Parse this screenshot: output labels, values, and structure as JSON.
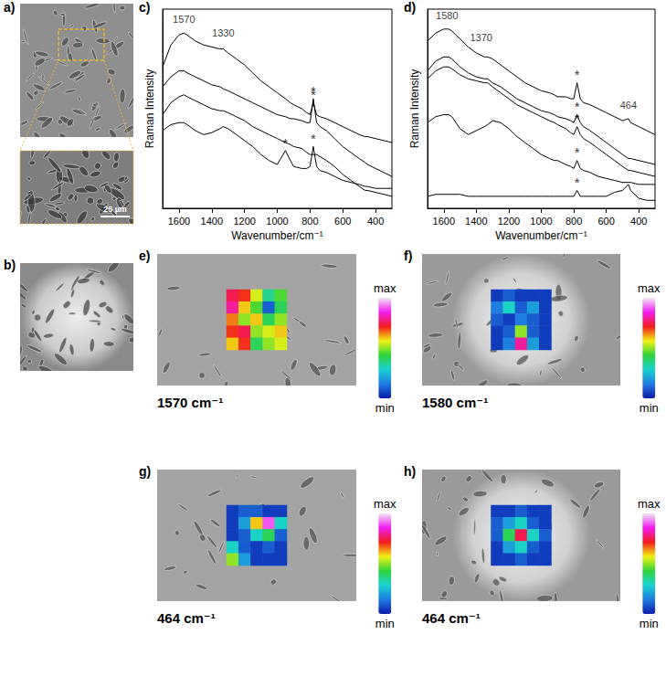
{
  "chart_data": [
    {
      "type": "image",
      "panel": "a)",
      "scale_bar": "25 µm"
    },
    {
      "type": "image",
      "panel": "b)"
    },
    {
      "type": "line",
      "panel": "c)",
      "xlabel": "Wavenumber/cm⁻¹",
      "ylabel": "Raman Intensity",
      "x": [
        1700,
        1650,
        1600,
        1570,
        1550,
        1500,
        1450,
        1400,
        1350,
        1330,
        1300,
        1250,
        1200,
        1150,
        1100,
        1050,
        1000,
        950,
        920,
        900,
        850,
        820,
        800,
        780,
        760,
        740,
        700,
        650,
        600,
        550,
        500,
        464,
        450,
        400,
        350,
        300
      ],
      "xlim": [
        1700,
        300
      ],
      "xticks": [
        1600,
        1400,
        1200,
        1000,
        800,
        600,
        400
      ],
      "ylim": [
        0,
        100
      ],
      "tick_labels": "x",
      "grid": false,
      "series": [
        {
          "color": "#000000",
          "values": [
            71,
            82,
            87,
            88,
            87,
            84,
            82,
            81,
            80,
            80,
            78,
            75,
            72,
            68,
            64,
            61,
            58,
            55,
            53,
            52,
            50,
            48,
            47,
            53,
            47,
            46,
            45,
            43,
            41,
            39,
            37,
            36,
            36,
            35,
            34,
            33
          ]
        },
        {
          "color": "#000000",
          "values": [
            61,
            66,
            69,
            69,
            68,
            66,
            64,
            62,
            61,
            60,
            59,
            57,
            55,
            53,
            51,
            49,
            47,
            46,
            45,
            45,
            44,
            43,
            43,
            55,
            43,
            41,
            39,
            35,
            31,
            28,
            25,
            23,
            22,
            20,
            18,
            16
          ]
        },
        {
          "color": "#000000",
          "values": [
            47,
            53,
            56,
            57,
            56,
            54,
            52,
            50,
            49,
            49,
            48,
            46,
            44,
            41,
            39,
            37,
            35,
            33,
            32,
            31,
            30,
            28,
            27,
            27,
            27,
            26,
            24,
            21,
            17,
            14,
            11,
            9,
            9,
            8,
            7,
            6
          ]
        },
        {
          "color": "#000000",
          "values": [
            39,
            42,
            43,
            43,
            42,
            39,
            37,
            38,
            40,
            41,
            40,
            37,
            34,
            31,
            27,
            24,
            22,
            29,
            24,
            21,
            20,
            20,
            21,
            31,
            21,
            19,
            18,
            16,
            14,
            13,
            12,
            11,
            11,
            10,
            10,
            10
          ]
        }
      ],
      "annotations": [
        {
          "text": "1570",
          "x": 1570,
          "y": 95
        },
        {
          "text": "1330",
          "x": 1330,
          "y": 88
        },
        {
          "text": "*",
          "x": 780,
          "y": 57
        },
        {
          "text": "*",
          "x": 780,
          "y": 59
        },
        {
          "text": "*",
          "x": 950,
          "y": 33
        },
        {
          "text": "*",
          "x": 780,
          "y": 35
        }
      ]
    },
    {
      "type": "line",
      "panel": "d)",
      "xlabel": "Wavenumber/cm⁻¹",
      "ylabel": "Raman Intensity",
      "x": [
        1700,
        1650,
        1600,
        1570,
        1550,
        1500,
        1450,
        1400,
        1350,
        1330,
        1300,
        1250,
        1200,
        1150,
        1100,
        1050,
        1000,
        950,
        920,
        900,
        850,
        820,
        800,
        780,
        760,
        740,
        700,
        650,
        600,
        550,
        500,
        464,
        450,
        400,
        350,
        300
      ],
      "xlim": [
        1700,
        300
      ],
      "xticks": [
        1600,
        1400,
        1200,
        1000,
        800,
        600,
        400
      ],
      "ylim": [
        0,
        100
      ],
      "tick_labels": "x",
      "grid": false,
      "series": [
        {
          "color": "#000000",
          "values": [
            84,
            88,
            90,
            90,
            89,
            85,
            81,
            78,
            76,
            76,
            75,
            72,
            69,
            66,
            63,
            61,
            59,
            58,
            57,
            56,
            56,
            55,
            55,
            63,
            55,
            53,
            52,
            50,
            48,
            46,
            44,
            45,
            43,
            41,
            39,
            37
          ]
        },
        {
          "color": "#000000",
          "values": [
            69,
            74,
            76,
            76,
            75,
            71,
            68,
            66,
            65,
            65,
            63,
            61,
            58,
            55,
            53,
            51,
            49,
            48,
            47,
            46,
            45,
            44,
            43,
            47,
            43,
            41,
            39,
            36,
            33,
            30,
            27,
            25,
            25,
            24,
            23,
            22
          ]
        },
        {
          "color": "#000000",
          "values": [
            65,
            69,
            71,
            71,
            70,
            67,
            65,
            64,
            63,
            63,
            61,
            58,
            55,
            52,
            50,
            48,
            46,
            44,
            43,
            42,
            40,
            38,
            37,
            41,
            37,
            35,
            33,
            30,
            27,
            24,
            21,
            19,
            19,
            18,
            17,
            16
          ]
        },
        {
          "color": "#000000",
          "values": [
            43,
            46,
            47,
            47,
            46,
            40,
            37,
            39,
            41,
            42,
            44,
            43,
            40,
            36,
            33,
            30,
            27,
            25,
            24,
            24,
            22,
            21,
            20,
            24,
            20,
            19,
            18,
            16,
            15,
            14,
            13,
            13,
            13,
            12,
            12,
            12
          ]
        },
        {
          "color": "#000000",
          "values": [
            6,
            7,
            7,
            7,
            7,
            7,
            6,
            6,
            6,
            6,
            6,
            6,
            6,
            6,
            6,
            6,
            6,
            6,
            6,
            6,
            6,
            6,
            6,
            9,
            6,
            6,
            6,
            6,
            6,
            8,
            9,
            12,
            9,
            5,
            4,
            4
          ]
        }
      ],
      "annotations": [
        {
          "text": "1580",
          "x": 1580,
          "y": 97
        },
        {
          "text": "1370",
          "x": 1370,
          "y": 86
        },
        {
          "text": "464",
          "x": 464,
          "y": 52
        },
        {
          "text": "*",
          "x": 780,
          "y": 67
        },
        {
          "text": "*",
          "x": 780,
          "y": 51
        },
        {
          "text": "*",
          "x": 780,
          "y": 45
        },
        {
          "text": "*",
          "x": 780,
          "y": 28
        },
        {
          "text": "*",
          "x": 780,
          "y": 13
        }
      ]
    },
    {
      "type": "heatmap",
      "panel": "e)",
      "title": "1570 cm⁻¹",
      "cells": [
        [
          0.75,
          0.7,
          0.55,
          0.35,
          0.45
        ],
        [
          0.8,
          0.6,
          0.45,
          0.1,
          0.4
        ],
        [
          0.65,
          0.5,
          0.6,
          0.4,
          0.5
        ],
        [
          0.7,
          0.75,
          0.5,
          0.55,
          0.6
        ],
        [
          0.6,
          0.7,
          0.4,
          0.5,
          0.55
        ]
      ],
      "color_range": [
        0,
        1
      ],
      "color_labels": [
        "max",
        "min"
      ],
      "colors": [
        "#0a1aa8",
        "#1f7be0",
        "#19d3d3",
        "#2fd33a",
        "#f2f214",
        "#f21c1c",
        "#f21cf2",
        "#f2e6f2"
      ]
    },
    {
      "type": "heatmap",
      "panel": "f)",
      "title": "1580 cm⁻¹",
      "cells": [
        [
          0.05,
          0.1,
          0.05,
          0.05,
          0.05
        ],
        [
          0.15,
          0.3,
          0.1,
          0.2,
          0.05
        ],
        [
          0.1,
          0.05,
          0.15,
          0.1,
          0.05
        ],
        [
          0.05,
          0.1,
          0.5,
          0.1,
          0.05
        ],
        [
          0.05,
          0.15,
          0.8,
          0.2,
          0.05
        ]
      ],
      "color_range": [
        0,
        1
      ],
      "color_labels": [
        "max",
        "min"
      ],
      "colors": [
        "#0a1aa8",
        "#1f7be0",
        "#19d3d3",
        "#2fd33a",
        "#f2f214",
        "#f21c1c",
        "#f21cf2",
        "#f2e6f2"
      ]
    },
    {
      "type": "heatmap",
      "panel": "g)",
      "title": "464 cm⁻¹",
      "cells": [
        [
          0.05,
          0.1,
          0.1,
          0.05,
          0.05
        ],
        [
          0.05,
          0.2,
          0.6,
          0.9,
          0.3
        ],
        [
          0.05,
          0.1,
          0.3,
          0.4,
          0.1
        ],
        [
          0.3,
          0.1,
          0.05,
          0.1,
          0.05
        ],
        [
          0.5,
          0.2,
          0.05,
          0.05,
          0.05
        ]
      ],
      "color_range": [
        0,
        1
      ],
      "color_labels": [
        "max",
        "min"
      ],
      "colors": [
        "#0a1aa8",
        "#1f7be0",
        "#19d3d3",
        "#2fd33a",
        "#f2f214",
        "#f21c1c",
        "#f21cf2",
        "#f2e6f2"
      ]
    },
    {
      "type": "heatmap",
      "panel": "h)",
      "title": "464 cm⁻¹",
      "cells": [
        [
          0.05,
          0.05,
          0.1,
          0.05,
          0.05
        ],
        [
          0.1,
          0.2,
          0.3,
          0.1,
          0.05
        ],
        [
          0.1,
          0.4,
          0.75,
          0.3,
          0.1
        ],
        [
          0.05,
          0.2,
          0.3,
          0.1,
          0.05
        ],
        [
          0.05,
          0.05,
          0.1,
          0.05,
          0.05
        ]
      ],
      "color_range": [
        0,
        1
      ],
      "color_labels": [
        "max",
        "min"
      ],
      "colors": [
        "#0a1aa8",
        "#1f7be0",
        "#19d3d3",
        "#2fd33a",
        "#f2f214",
        "#f21c1c",
        "#f21cf2",
        "#f2e6f2"
      ]
    }
  ]
}
